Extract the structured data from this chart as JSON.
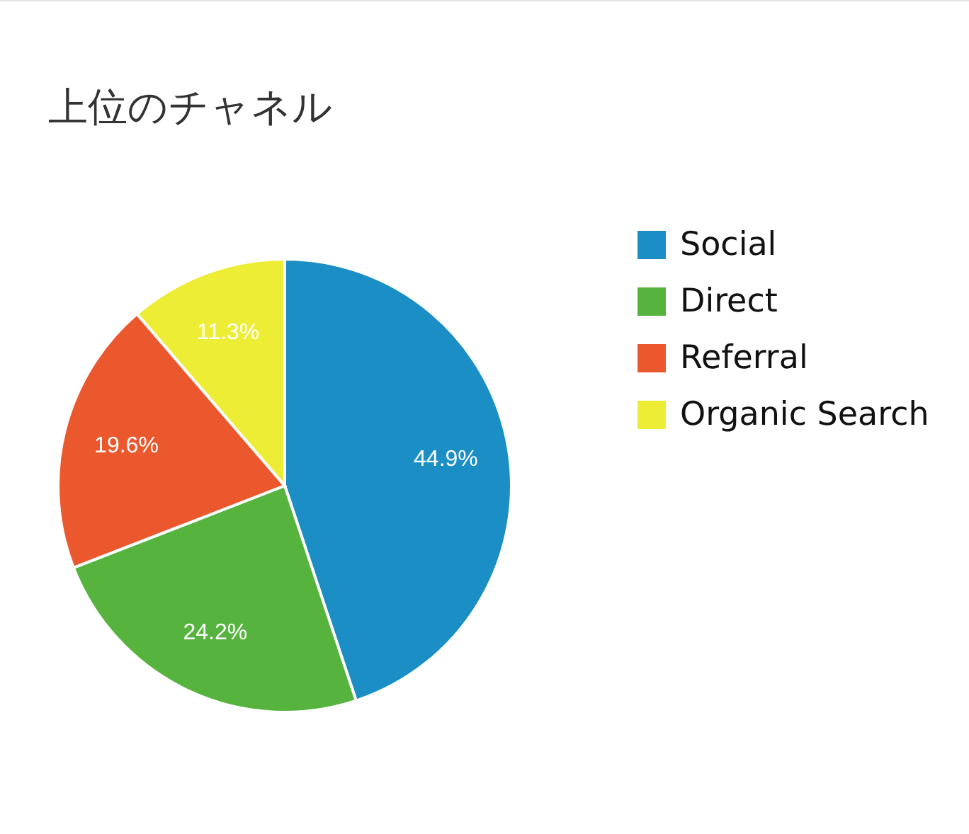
{
  "chart_data": {
    "type": "pie",
    "title": "上位のチャネル",
    "categories": [
      "Social",
      "Direct",
      "Referral",
      "Organic Search"
    ],
    "values": [
      44.9,
      24.2,
      19.6,
      11.3
    ],
    "colors": [
      "#1b8ec5",
      "#56b43e",
      "#ec582d",
      "#eded36"
    ],
    "value_labels": [
      "44.9%",
      "24.2%",
      "19.6%",
      "11.3%"
    ],
    "legend": "right"
  }
}
